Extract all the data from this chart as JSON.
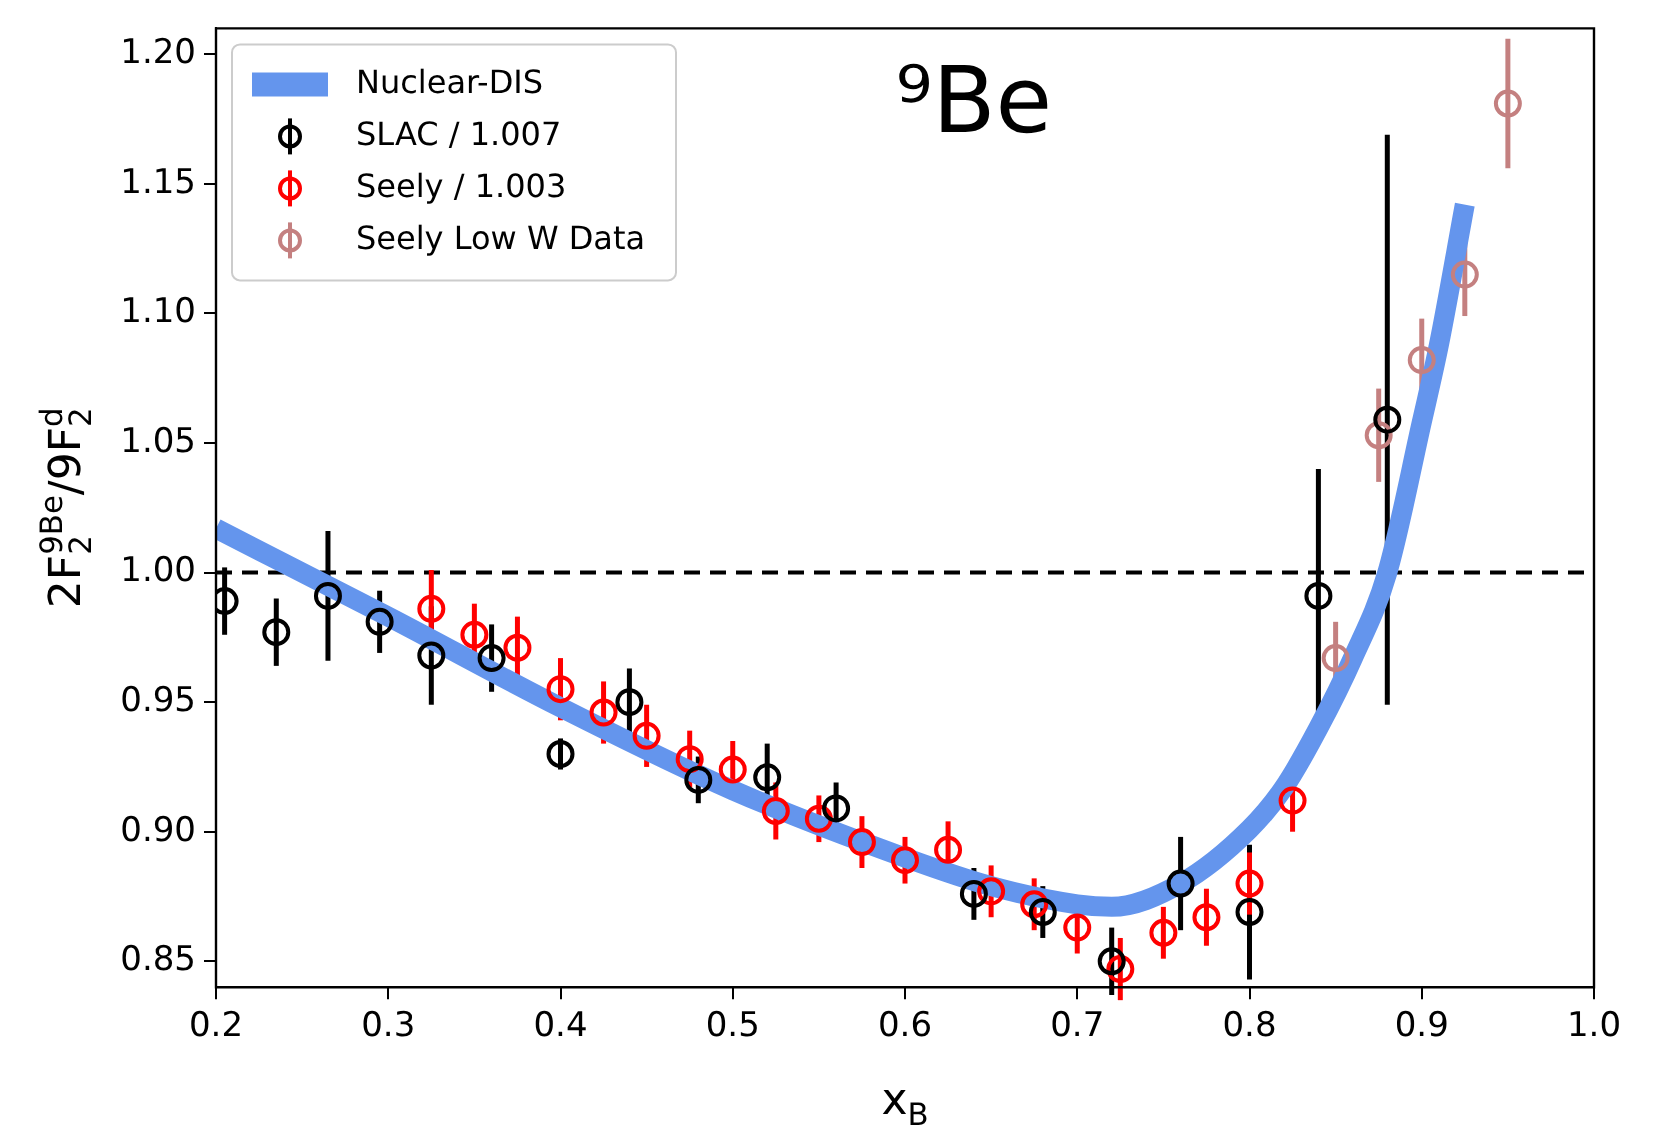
{
  "chart_data": {
    "type": "scatter",
    "title": "⁹Be",
    "xlabel": "x$_{B}$",
    "ylabel": "2F$_{2}$$^{9Be}$/9F$_{2}$$^{d}$",
    "xlim": [
      0.2,
      1.0
    ],
    "xticks": [
      {
        "value": 0.2,
        "label": "0.2"
      },
      {
        "value": 0.3,
        "label": "0.3"
      },
      {
        "value": 0.4,
        "label": "0.4"
      },
      {
        "value": 0.5,
        "label": "0.5"
      },
      {
        "value": 0.6,
        "label": "0.6"
      },
      {
        "value": 0.7,
        "label": "0.7"
      },
      {
        "value": 0.8,
        "label": "0.8"
      },
      {
        "value": 0.9,
        "label": "0.9"
      },
      {
        "value": 1.0,
        "label": "1.0"
      }
    ],
    "ylim": [
      0.84,
      1.21
    ],
    "yticks": [
      {
        "value": 0.85,
        "label": "0.85"
      },
      {
        "value": 0.9,
        "label": "0.90"
      },
      {
        "value": 0.95,
        "label": "0.95"
      },
      {
        "value": 1.0,
        "label": "1.00"
      },
      {
        "value": 1.05,
        "label": "1.05"
      },
      {
        "value": 1.1,
        "label": "1.10"
      },
      {
        "value": 1.15,
        "label": "1.15"
      },
      {
        "value": 1.2,
        "label": "1.20"
      }
    ],
    "grid": false,
    "legend": "top left",
    "marker": "circle",
    "ref_lines": [
      {
        "axis": "y",
        "value": 1.0,
        "color": "#000000",
        "line_style": "dashed"
      }
    ],
    "series": [
      {
        "name": "Nuclear-DIS",
        "type": "line",
        "color": "#6495ed",
        "marker": "none",
        "x": [
          0.2,
          0.3,
          0.4,
          0.5,
          0.6,
          0.65,
          0.7,
          0.72,
          0.76,
          0.8,
          0.82,
          0.84,
          0.86,
          0.88,
          0.9,
          0.91,
          0.925
        ],
        "values": [
          1.017,
          0.983,
          0.948,
          0.916,
          0.89,
          0.879,
          0.872,
          0.871,
          0.88,
          0.901,
          0.917,
          0.94,
          0.967,
          1.0,
          1.058,
          1.088,
          1.142
        ]
      },
      {
        "name": "SLAC / 1.007",
        "color": "#000000",
        "x": [
          0.205,
          0.235,
          0.265,
          0.295,
          0.325,
          0.36,
          0.4,
          0.44,
          0.48,
          0.52,
          0.56,
          0.64,
          0.68,
          0.72,
          0.76,
          0.8,
          0.84,
          0.88
        ],
        "values": [
          0.989,
          0.977,
          0.991,
          0.981,
          0.968,
          0.967,
          0.93,
          0.95,
          0.92,
          0.921,
          0.909,
          0.876,
          0.869,
          0.85,
          0.88,
          0.869,
          0.991,
          1.059
        ],
        "errors": [
          0.013,
          0.013,
          0.025,
          0.012,
          0.019,
          0.013,
          0.006,
          0.013,
          0.009,
          0.013,
          0.01,
          0.01,
          0.01,
          0.013,
          0.018,
          0.026,
          0.049,
          0.11
        ]
      },
      {
        "name": "Seely / 1.003",
        "color": "#ff0000",
        "x": [
          0.325,
          0.35,
          0.375,
          0.4,
          0.425,
          0.45,
          0.475,
          0.5,
          0.525,
          0.55,
          0.575,
          0.6,
          0.625,
          0.65,
          0.675,
          0.7,
          0.725,
          0.75,
          0.775,
          0.8,
          0.825
        ],
        "values": [
          0.986,
          0.976,
          0.971,
          0.955,
          0.946,
          0.937,
          0.928,
          0.924,
          0.908,
          0.905,
          0.896,
          0.889,
          0.893,
          0.877,
          0.872,
          0.863,
          0.847,
          0.861,
          0.867,
          0.88,
          0.912
        ],
        "errors": [
          0.015,
          0.012,
          0.012,
          0.012,
          0.012,
          0.012,
          0.011,
          0.011,
          0.011,
          0.009,
          0.01,
          0.009,
          0.011,
          0.01,
          0.01,
          0.01,
          0.012,
          0.01,
          0.011,
          0.012,
          0.012
        ]
      },
      {
        "name": "Seely Low W Data",
        "color": "#c48080",
        "x": [
          0.85,
          0.875,
          0.9,
          0.925,
          0.95
        ],
        "values": [
          0.967,
          1.053,
          1.082,
          1.115,
          1.181
        ],
        "errors": [
          0.014,
          0.018,
          0.016,
          0.016,
          0.025
        ]
      }
    ]
  }
}
